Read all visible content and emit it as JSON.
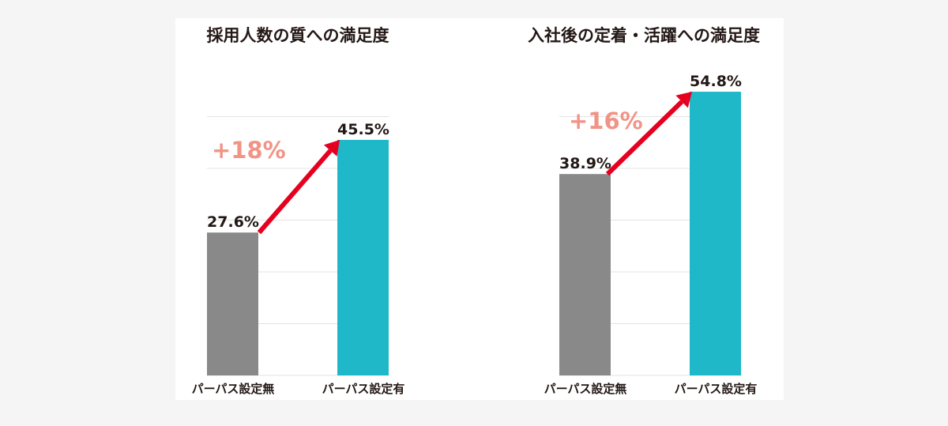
{
  "chart_data": [
    {
      "type": "bar",
      "title": "採用人数の質への満足度",
      "categories": [
        "パーパス設定無",
        "パーパス設定有"
      ],
      "values": [
        27.6,
        45.5
      ],
      "value_labels": [
        "27.6%",
        "45.5%"
      ],
      "colors": [
        "#898989",
        "#1fb8c9"
      ],
      "annotation": "+18%",
      "annotation_color": "#f19486",
      "arrow_color": "#e60020",
      "ylim": [
        0,
        50
      ],
      "grid": true,
      "grid_step": 10
    },
    {
      "type": "bar",
      "title": "入社後の定着・活躍への満足度",
      "categories": [
        "パーパス設定無",
        "パーパス設定有"
      ],
      "values": [
        38.9,
        54.8
      ],
      "value_labels": [
        "38.9%",
        "54.8%"
      ],
      "colors": [
        "#898989",
        "#1fb8c9"
      ],
      "annotation": "+16%",
      "annotation_color": "#f19486",
      "arrow_color": "#e60020",
      "ylim": [
        0,
        50
      ],
      "grid": true,
      "grid_step": 10
    }
  ]
}
